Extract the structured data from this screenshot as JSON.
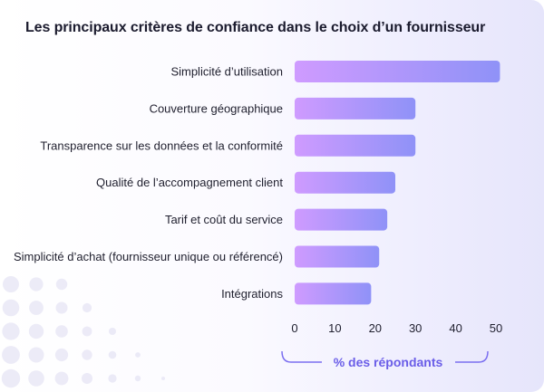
{
  "header": {
    "title": "Les principaux critères de confiance dans le choix d’un fournisseur"
  },
  "colors": {
    "bar_start": "#cf9bff",
    "bar_end": "#8f92f7",
    "axis_title": "#6a5de8",
    "bracket": "#7b6ff0",
    "text": "#1f1f2e",
    "dots": "#dcdaf0"
  },
  "chart_data": {
    "type": "bar",
    "orientation": "horizontal",
    "categories": [
      "Simplicité d’utilisation",
      "Couverture géographique",
      "Transparence sur les données et la conformité",
      "Qualité de l’accompagnement client",
      "Tarif et coût du service",
      "Simplicité d’achat (fournisseur unique ou référencé)",
      "Intégrations"
    ],
    "values": [
      51,
      30,
      30,
      25,
      23,
      21,
      19
    ],
    "xticks": [
      0,
      10,
      20,
      30,
      40,
      50
    ],
    "xlim": [
      0,
      51
    ],
    "xlabel": "% des répondants",
    "title": "Les principaux critères de confiance dans le choix d’un fournisseur",
    "grid": false,
    "legend": "none"
  }
}
